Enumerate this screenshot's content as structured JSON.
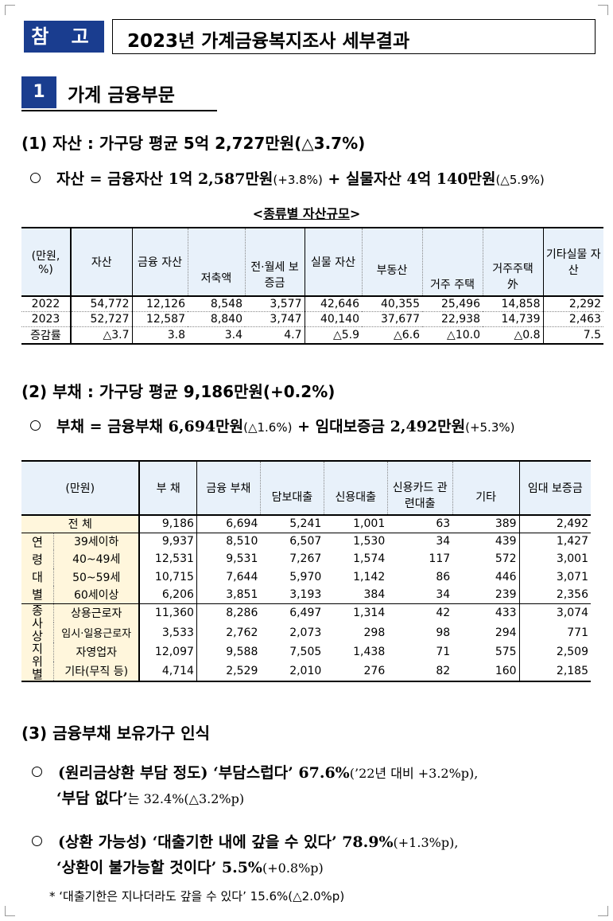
{
  "header": {
    "ref_tag": "참 고",
    "title": "2023년 가계금융복지조사 세부결과"
  },
  "section": {
    "number": "1",
    "title": "가계 금융부문"
  },
  "assets": {
    "heading": "(1) 자산 : 가구당 평균 5억 2,727만원(△3.7%)",
    "bullet_main": "자산 = 금융자산 1억 2,587만원",
    "bullet_main_paren": "(+3.8%)",
    "bullet_plus": " + 실물자산 4억 140만원",
    "bullet_plus_paren": "(△5.9%)",
    "caption_left": "<",
    "caption_text": "종류별 자산규모",
    "caption_right": ">",
    "table": {
      "unit": "(만원, %)",
      "col_asset": "자산",
      "col_fin": "금융 자산",
      "col_savings": "저축액",
      "col_deposit": "전·월세 보증금",
      "col_real": "실물 자산",
      "col_realestate": "부동산",
      "col_residence": "거주 주택",
      "col_nonresidence": "거주주택 外",
      "col_other": "기타실물 자산",
      "rows": [
        {
          "label": "2022",
          "v": [
            "54,772",
            "12,126",
            "8,548",
            "3,577",
            "42,646",
            "40,355",
            "25,496",
            "14,858",
            "2,292"
          ]
        },
        {
          "label": "2023",
          "v": [
            "52,727",
            "12,587",
            "8,840",
            "3,747",
            "40,140",
            "37,677",
            "22,938",
            "14,739",
            "2,463"
          ]
        },
        {
          "label": "증감률",
          "v": [
            "△3.7",
            "3.8",
            "3.4",
            "4.7",
            "△5.9",
            "△6.6",
            "△10.0",
            "△0.8",
            "7.5"
          ]
        }
      ]
    }
  },
  "debt": {
    "heading": "(2) 부채 : 가구당 평균 9,186만원(+0.2%)",
    "bullet_main": "부채 = 금융부채 6,694만원",
    "bullet_main_paren": "(△1.6%)",
    "bullet_plus": " + 임대보증금 2,492만원",
    "bullet_plus_paren": "(+5.3%)",
    "table": {
      "unit": "(만원)",
      "col_debt": "부 채",
      "col_fin": "금융 부채",
      "col_mortgage": "담보대출",
      "col_credit": "신용대출",
      "col_card": "신용카드 관련대출",
      "col_other": "기타",
      "col_lease": "임대 보증금",
      "total_label": "전 체",
      "total": [
        "9,186",
        "6,694",
        "5,241",
        "1,001",
        "63",
        "389",
        "2,492"
      ],
      "age_group": "연령대별",
      "age_rows": [
        {
          "label": "39세이하",
          "v": [
            "9,937",
            "8,510",
            "6,507",
            "1,530",
            "34",
            "439",
            "1,427"
          ]
        },
        {
          "label": "40~49세",
          "v": [
            "12,531",
            "9,531",
            "7,267",
            "1,574",
            "117",
            "572",
            "3,001"
          ]
        },
        {
          "label": "50~59세",
          "v": [
            "10,715",
            "7,644",
            "5,970",
            "1,142",
            "86",
            "446",
            "3,071"
          ]
        },
        {
          "label": "60세이상",
          "v": [
            "6,206",
            "3,851",
            "3,193",
            "384",
            "34",
            "239",
            "2,356"
          ]
        }
      ],
      "job_group": "종사상지위별",
      "job_rows": [
        {
          "label": "상용근로자",
          "v": [
            "11,360",
            "8,286",
            "6,497",
            "1,314",
            "42",
            "433",
            "3,074"
          ]
        },
        {
          "label": "임시·일용근로자",
          "v": [
            "3,533",
            "2,762",
            "2,073",
            "298",
            "98",
            "294",
            "771"
          ]
        },
        {
          "label": "자영업자",
          "v": [
            "12,097",
            "9,588",
            "7,505",
            "1,438",
            "71",
            "575",
            "2,509"
          ]
        },
        {
          "label": "기타(무직 등)",
          "v": [
            "4,714",
            "2,529",
            "2,010",
            "276",
            "82",
            "160",
            "2,185"
          ]
        }
      ]
    }
  },
  "perception": {
    "heading": "(3) 금융부채 보유가구 인식",
    "b1_label": "(원리금상환 부담 정도)",
    "b1_quote": " ‘부담스럽다’ 67.6%",
    "b1_paren": "(’22년 대비 +3.2%p),",
    "b1_line2_quote": "‘부담 없다’",
    "b1_line2_rest": "는 32.4%(△3.2%p)",
    "b2_label": "(상환 가능성)",
    "b2_quote": " ‘대출기한 내에 갚을 수 있다’ 78.9%",
    "b2_paren": "(+1.3%p),",
    "b2_line2_quote": "‘상환이 불가능할 것이다’ 5.5%",
    "b2_line2_paren": "(+0.8%p)",
    "footnote": "* ‘대출기한은 지나더라도 갚을 수 있다’ 15.6%(△2.0%p)"
  }
}
